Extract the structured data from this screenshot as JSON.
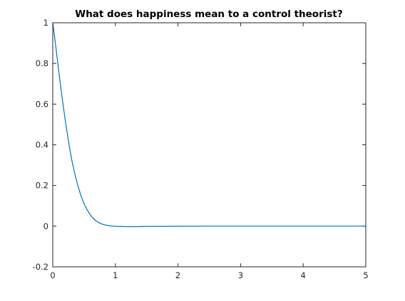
{
  "chart_data": {
    "type": "line",
    "title": "What does happiness mean to a control theorist?",
    "xlabel": "",
    "ylabel": "",
    "xlim": [
      0,
      5
    ],
    "ylim": [
      -0.2,
      1
    ],
    "x_ticks": [
      0,
      1,
      2,
      3,
      4,
      5
    ],
    "x_tick_labels": [
      "0",
      "1",
      "2",
      "3",
      "4",
      "5"
    ],
    "y_ticks": [
      -0.2,
      0,
      0.2,
      0.4,
      0.6,
      0.8,
      1
    ],
    "y_tick_labels": [
      "-0.2",
      "0",
      "0.2",
      "0.4",
      "0.6",
      "0.8",
      "1"
    ],
    "grid": false,
    "series": [
      {
        "color": "#0072bd",
        "x": [
          0,
          0.05,
          0.1,
          0.15,
          0.2,
          0.25,
          0.3,
          0.35,
          0.4,
          0.45,
          0.5,
          0.55,
          0.6,
          0.65,
          0.7,
          0.75,
          0.8,
          0.85,
          0.9,
          0.95,
          1.0,
          1.1,
          1.2,
          1.3,
          1.4,
          1.5,
          1.7,
          2.0,
          2.5,
          3.0,
          3.5,
          4.0,
          4.5,
          5.0
        ],
        "y": [
          1.0,
          0.88,
          0.75,
          0.63,
          0.52,
          0.42,
          0.33,
          0.26,
          0.2,
          0.15,
          0.11,
          0.08,
          0.055,
          0.037,
          0.024,
          0.015,
          0.009,
          0.005,
          0.002,
          0.0005,
          -0.001,
          -0.002,
          -0.0025,
          -0.0025,
          -0.002,
          -0.0015,
          -0.001,
          -0.0005,
          0.0,
          0.0,
          0.0,
          0.0,
          0.0,
          0.0
        ]
      }
    ]
  }
}
